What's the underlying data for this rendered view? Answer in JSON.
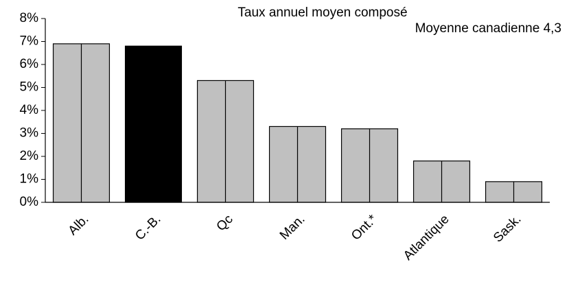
{
  "chart_data": {
    "type": "bar",
    "title": "Taux annuel moyen composé",
    "subtitle": "Moyenne canadienne 4,3",
    "categories": [
      "Alb.",
      "C.-B.",
      "Qc",
      "Man.",
      "Ont.*",
      "Atlantique",
      "Sask."
    ],
    "values": [
      6.9,
      6.8,
      5.3,
      3.3,
      3.2,
      1.8,
      0.9
    ],
    "colors": [
      "#c0c0c0",
      "#000000",
      "#c0c0c0",
      "#c0c0c0",
      "#c0c0c0",
      "#c0c0c0",
      "#c0c0c0"
    ],
    "ylim": [
      0,
      8
    ],
    "yticks": [
      {
        "value": 0,
        "label": "0%"
      },
      {
        "value": 1,
        "label": "1%"
      },
      {
        "value": 2,
        "label": "2%"
      },
      {
        "value": 3,
        "label": "3%"
      },
      {
        "value": 4,
        "label": "4%"
      },
      {
        "value": 5,
        "label": "5%"
      },
      {
        "value": 6,
        "label": "6%"
      },
      {
        "value": 7,
        "label": "7%"
      },
      {
        "value": 8,
        "label": "8%"
      }
    ],
    "grid": false
  }
}
